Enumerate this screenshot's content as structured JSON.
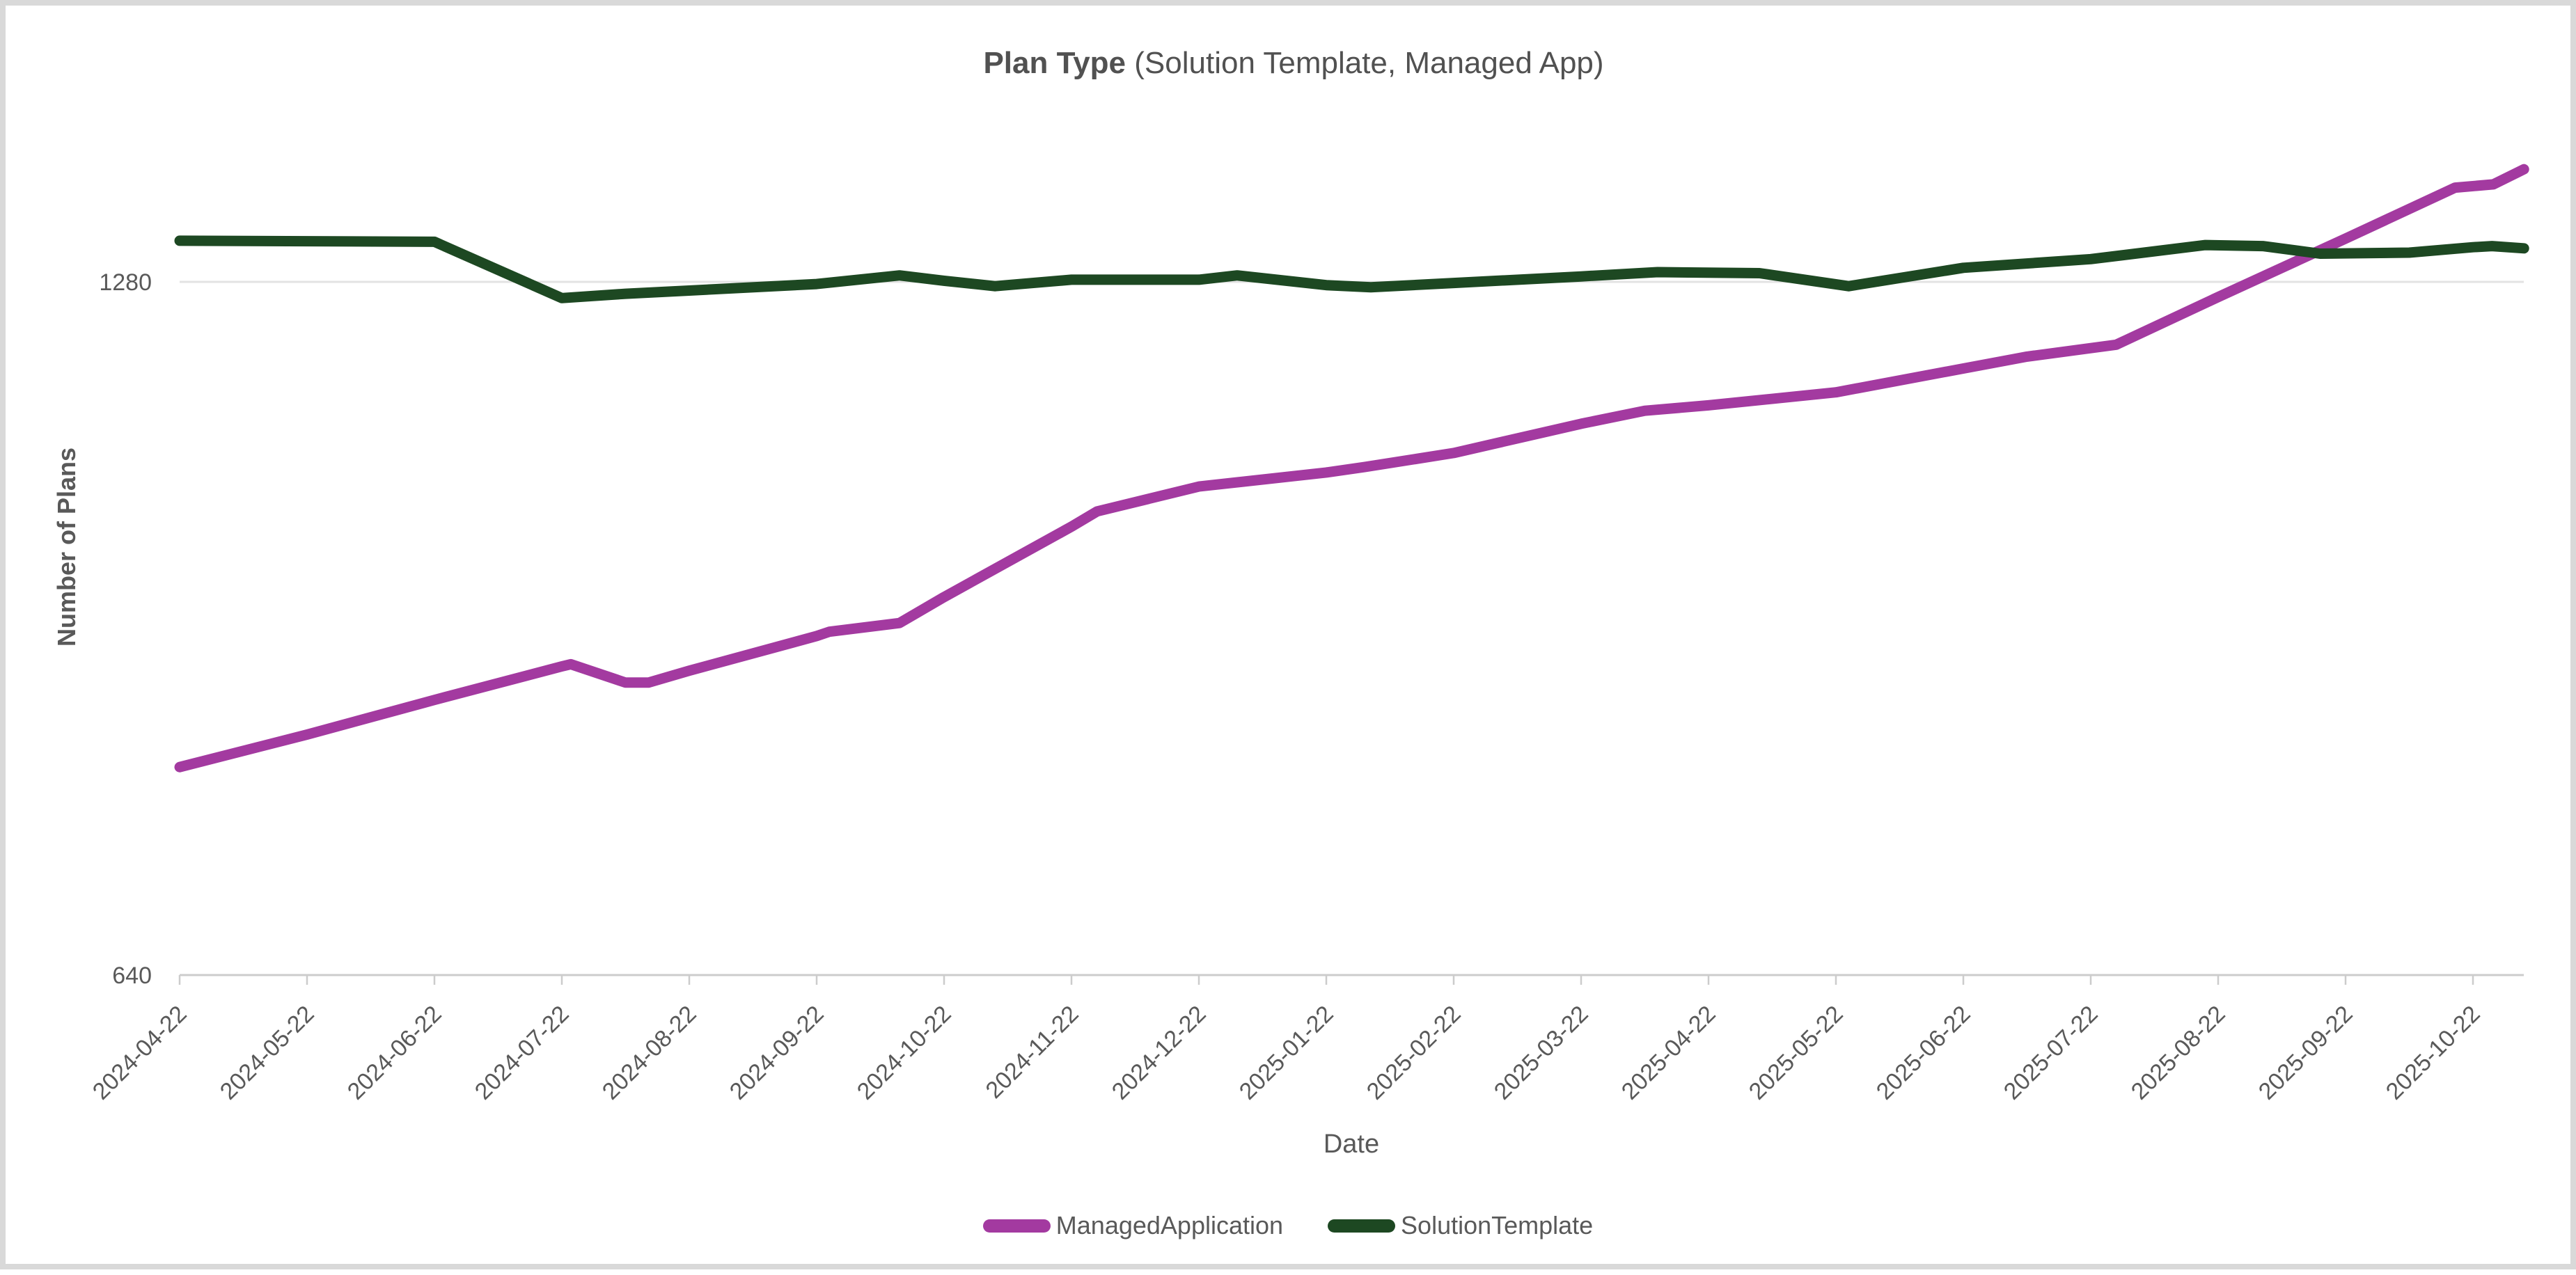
{
  "panel": {
    "background": "#FFFFFF",
    "border_color": "#D9D9D9"
  },
  "title": {
    "bold": "Plan Type",
    "regular": " (Solution Template, Managed App)"
  },
  "axes": {
    "y_label": "Number of Plans",
    "x_label": "Date"
  },
  "legend": [
    {
      "label": "ManagedApplication",
      "color": "#A33AA0"
    },
    {
      "label": "SolutionTemplate",
      "color": "#1D4822"
    }
  ],
  "chart_data": {
    "type": "line",
    "title": "Plan Type (Solution Template, Managed App)",
    "xlabel": "Date",
    "ylabel": "Number of Plans",
    "x_tick_labels": [
      "2024-04-22",
      "2024-05-22",
      "2024-06-22",
      "2024-07-22",
      "2024-08-22",
      "2024-09-22",
      "2024-10-22",
      "2024-11-22",
      "2024-12-22",
      "2025-01-22",
      "2025-02-22",
      "2025-03-22",
      "2025-04-22",
      "2025-05-22",
      "2025-06-22",
      "2025-07-22",
      "2025-08-22",
      "2025-09-22",
      "2025-10-22"
    ],
    "x_unit": "months_since_2024-04-22",
    "y_ticks": [
      1280,
      640
    ],
    "ylim": [
      640,
      1490
    ],
    "grid": "single horizontal gridline at y=1280; x axis baseline at y=640",
    "legend_position": "bottom-center",
    "colors": {
      "gridline": "#E3E3E3",
      "axis_line": "#CCCCCC",
      "tick_text": "#595959",
      "title_text": "#515151"
    },
    "series": [
      {
        "name": "ManagedApplication",
        "color": "#A33AA0",
        "points": [
          [
            0,
            832
          ],
          [
            1,
            862
          ],
          [
            2,
            894
          ],
          [
            3,
            925
          ],
          [
            3.07,
            927
          ],
          [
            3.5,
            910
          ],
          [
            3.68,
            910
          ],
          [
            4,
            921
          ],
          [
            5,
            953
          ],
          [
            5.1,
            957
          ],
          [
            5.65,
            965
          ],
          [
            6,
            989
          ],
          [
            7,
            1054
          ],
          [
            7.2,
            1068
          ],
          [
            8,
            1091
          ],
          [
            9,
            1104
          ],
          [
            9.3,
            1109
          ],
          [
            10,
            1122
          ],
          [
            11,
            1149
          ],
          [
            11.5,
            1161
          ],
          [
            12,
            1166
          ],
          [
            13,
            1178
          ],
          [
            14,
            1200
          ],
          [
            14.5,
            1211
          ],
          [
            15.2,
            1222
          ],
          [
            16,
            1266
          ],
          [
            17,
            1320
          ],
          [
            17.86,
            1367
          ],
          [
            18.16,
            1370
          ],
          [
            18.4,
            1384
          ]
        ]
      },
      {
        "name": "SolutionTemplate",
        "color": "#1D4822",
        "points": [
          [
            0,
            1318
          ],
          [
            2,
            1317
          ],
          [
            3,
            1265
          ],
          [
            3.5,
            1269
          ],
          [
            4,
            1272
          ],
          [
            5,
            1278
          ],
          [
            5.65,
            1286
          ],
          [
            6,
            1281
          ],
          [
            6.4,
            1276
          ],
          [
            7,
            1282
          ],
          [
            8,
            1282
          ],
          [
            8.3,
            1286
          ],
          [
            9,
            1277
          ],
          [
            9.35,
            1275
          ],
          [
            10,
            1279
          ],
          [
            11,
            1285
          ],
          [
            11.6,
            1289
          ],
          [
            12.4,
            1288
          ],
          [
            13.1,
            1276
          ],
          [
            14,
            1293
          ],
          [
            15,
            1301
          ],
          [
            15.9,
            1314
          ],
          [
            16.35,
            1313
          ],
          [
            16.8,
            1306
          ],
          [
            17.5,
            1307
          ],
          [
            18,
            1312
          ],
          [
            18.15,
            1313
          ],
          [
            18.4,
            1311
          ]
        ]
      }
    ]
  }
}
